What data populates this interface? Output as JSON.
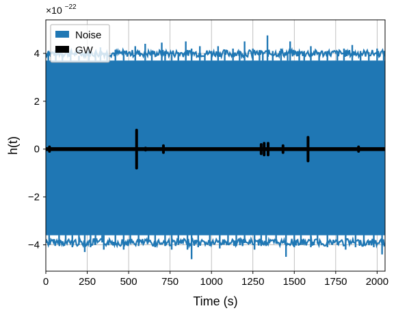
{
  "chart_data": {
    "type": "line",
    "title": "",
    "xlabel": "Time (s)",
    "ylabel": "h(t)",
    "y_offset_label": "×10",
    "y_offset_exponent": "−22",
    "xlim": [
      0,
      2048
    ],
    "ylim": [
      -5.1,
      5.4
    ],
    "x_ticks": [
      0,
      250,
      500,
      750,
      1000,
      1250,
      1500,
      1750,
      2000
    ],
    "x_tick_labels": [
      "0",
      "250",
      "500",
      "750",
      "1000",
      "1250",
      "1500",
      "1750",
      "2000"
    ],
    "y_ticks": [
      -4,
      -2,
      0,
      2,
      4
    ],
    "y_tick_labels": [
      "−4",
      "−2",
      "0",
      "2",
      "4"
    ],
    "grid": true,
    "legend": "top-left",
    "series": [
      {
        "name": "Noise",
        "color": "#1f77b4",
        "kind": "noise-envelope",
        "upper_envelope": 3.7,
        "lower_envelope": -3.6,
        "upper_spikes": [
          [
            15,
            4.1
          ],
          [
            60,
            3.95
          ],
          [
            100,
            4.0
          ],
          [
            150,
            4.05
          ],
          [
            200,
            3.9
          ],
          [
            260,
            4.2
          ],
          [
            300,
            4.0
          ],
          [
            330,
            4.25
          ],
          [
            370,
            3.95
          ],
          [
            420,
            4.15
          ],
          [
            470,
            4.05
          ],
          [
            540,
            4.3
          ],
          [
            600,
            4.4
          ],
          [
            640,
            4.05
          ],
          [
            700,
            4.45
          ],
          [
            720,
            4.1
          ],
          [
            760,
            3.95
          ],
          [
            800,
            4.05
          ],
          [
            845,
            4.5
          ],
          [
            880,
            4.2
          ],
          [
            930,
            4.3
          ],
          [
            960,
            4.0
          ],
          [
            1000,
            4.1
          ],
          [
            1040,
            4.3
          ],
          [
            1080,
            4.05
          ],
          [
            1130,
            4.2
          ],
          [
            1170,
            4.0
          ],
          [
            1200,
            4.5
          ],
          [
            1250,
            4.2
          ],
          [
            1290,
            4.1
          ],
          [
            1310,
            4.05
          ],
          [
            1338,
            4.75
          ],
          [
            1370,
            4.1
          ],
          [
            1420,
            4.2
          ],
          [
            1460,
            4.0
          ],
          [
            1475,
            4.5
          ],
          [
            1530,
            4.05
          ],
          [
            1560,
            4.1
          ],
          [
            1600,
            4.3
          ],
          [
            1650,
            4.05
          ],
          [
            1700,
            4.1
          ],
          [
            1760,
            4.0
          ],
          [
            1800,
            4.2
          ],
          [
            1850,
            4.35
          ],
          [
            1900,
            4.1
          ],
          [
            1950,
            4.05
          ],
          [
            2000,
            4.2
          ],
          [
            2040,
            4.1
          ]
        ],
        "lower_spikes": [
          [
            20,
            -4.0
          ],
          [
            80,
            -3.9
          ],
          [
            120,
            -3.95
          ],
          [
            160,
            -4.1
          ],
          [
            200,
            -4.0
          ],
          [
            235,
            -4.3
          ],
          [
            270,
            -4.1
          ],
          [
            300,
            -4.0
          ],
          [
            340,
            -3.9
          ],
          [
            350,
            -4.2
          ],
          [
            420,
            -4.0
          ],
          [
            470,
            -4.2
          ],
          [
            510,
            -3.95
          ],
          [
            560,
            -4.05
          ],
          [
            620,
            -3.9
          ],
          [
            660,
            -4.1
          ],
          [
            720,
            -4.05
          ],
          [
            760,
            -4.2
          ],
          [
            800,
            -4.0
          ],
          [
            855,
            -4.2
          ],
          [
            880,
            -4.6
          ],
          [
            920,
            -4.1
          ],
          [
            990,
            -4.05
          ],
          [
            1050,
            -4.15
          ],
          [
            1100,
            -4.0
          ],
          [
            1150,
            -4.05
          ],
          [
            1200,
            -3.9
          ],
          [
            1260,
            -4.2
          ],
          [
            1300,
            -4.0
          ],
          [
            1330,
            -4.05
          ],
          [
            1390,
            -3.95
          ],
          [
            1450,
            -4.5
          ],
          [
            1500,
            -4.1
          ],
          [
            1540,
            -4.0
          ],
          [
            1600,
            -4.1
          ],
          [
            1640,
            -3.95
          ],
          [
            1700,
            -4.1
          ],
          [
            1760,
            -4.0
          ],
          [
            1810,
            -4.2
          ],
          [
            1870,
            -4.1
          ],
          [
            1920,
            -4.05
          ],
          [
            1980,
            -4.1
          ],
          [
            2030,
            -4.4
          ]
        ]
      },
      {
        "name": "GW",
        "color": "#000000",
        "kind": "bursts",
        "baseline": 0.0,
        "baseline_band": 0.08,
        "bursts": [
          [
            22,
            0.15
          ],
          [
            120,
            0.05
          ],
          [
            548,
            0.85
          ],
          [
            602,
            0.1
          ],
          [
            652,
            0.08
          ],
          [
            710,
            0.2
          ],
          [
            1206,
            0.06
          ],
          [
            1300,
            0.25
          ],
          [
            1318,
            0.3
          ],
          [
            1342,
            0.3
          ],
          [
            1432,
            0.2
          ],
          [
            1583,
            0.55
          ],
          [
            1700,
            0.06
          ],
          [
            1888,
            0.15
          ]
        ]
      }
    ]
  }
}
